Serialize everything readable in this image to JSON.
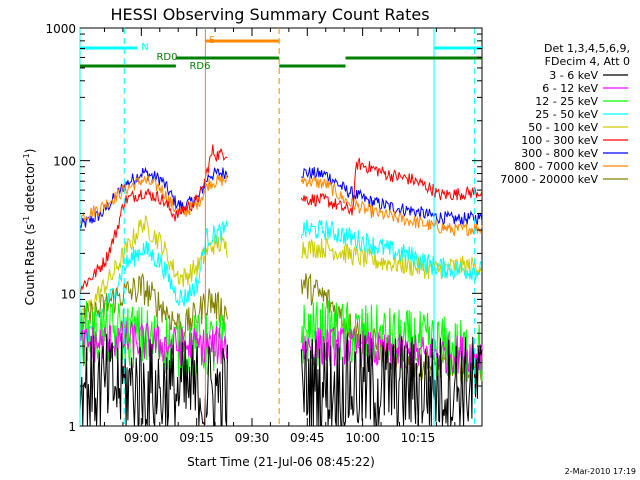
{
  "chart_data": {
    "type": "line",
    "title": "HESSI Observing Summary Count Rates",
    "xlabel": "Start Time (21-Jul-06 08:45:22)",
    "ylabel_parts": [
      "Count Rate (s",
      "-1",
      " detector",
      "-1",
      ")"
    ],
    "yscale": "log",
    "ylim": [
      1,
      1000
    ],
    "y_ticks": [
      {
        "value": 1,
        "label": "1"
      },
      {
        "value": 10,
        "label": "10"
      },
      {
        "value": 100,
        "label": "100"
      },
      {
        "value": 1000,
        "label": "1000"
      }
    ],
    "xlim_minutes": [
      -12,
      97
    ],
    "x_ticks": [
      {
        "t": 4.63,
        "label": "09:00"
      },
      {
        "t": 19.63,
        "label": "09:15"
      },
      {
        "t": 34.63,
        "label": "09:30"
      },
      {
        "t": 49.63,
        "label": "09:45"
      },
      {
        "t": 64.63,
        "label": "10:00"
      },
      {
        "t": 79.63,
        "label": "10:15"
      }
    ],
    "legend": {
      "header": [
        "Det 1,3,4,5,6,9,",
        "FDecim 4, Att 0"
      ],
      "entries": [
        {
          "label": "3 - 6 keV",
          "color": "#000000"
        },
        {
          "label": "6 - 12 keV",
          "color": "#ff00ff"
        },
        {
          "label": "12 - 25 keV",
          "color": "#00ff00"
        },
        {
          "label": "25 - 50 keV",
          "color": "#00ffff"
        },
        {
          "label": "50 - 100 keV",
          "color": "#cccc00"
        },
        {
          "label": "100 - 300 keV",
          "color": "#ff0000"
        },
        {
          "label": "300 - 800 keV",
          "color": "#0000ff"
        },
        {
          "label": "800 - 7000 keV",
          "color": "#ff8800"
        },
        {
          "label": "7000 - 20000 keV",
          "color": "#808000"
        }
      ]
    },
    "flag_labels": {
      "night": "N",
      "saa": "S",
      "rd0": "RD0",
      "rd6": "RD6"
    },
    "flags": {
      "night": {
        "color": "#00ffff",
        "bars": [
          [
            -12,
            3.5
          ],
          [
            84,
            97
          ]
        ],
        "edges": [
          -12,
          0,
          84,
          95
        ]
      },
      "saa": {
        "color": "#ff8800",
        "bars": [
          [
            22,
            42
          ]
        ],
        "edges": [
          22,
          42
        ]
      },
      "rd6": {
        "color": "#008000",
        "bars": [
          [
            -12,
            14
          ],
          [
            14,
            42
          ],
          [
            42,
            60
          ],
          [
            60,
            97
          ]
        ]
      }
    },
    "segments": [
      [
        -12,
        28
      ],
      [
        48,
        97
      ]
    ],
    "series": [
      {
        "name": "300 - 800 keV",
        "color": "#0000ff",
        "noise": 0.05,
        "points": [
          [
            -12,
            32
          ],
          [
            -6,
            40
          ],
          [
            0,
            65
          ],
          [
            5,
            82
          ],
          [
            10,
            72
          ],
          [
            14,
            48
          ],
          [
            16,
            45
          ],
          [
            20,
            52
          ],
          [
            23,
            78
          ],
          [
            25,
            80
          ],
          [
            28,
            82
          ],
          [
            48,
            82
          ],
          [
            55,
            78
          ],
          [
            60,
            60
          ],
          [
            66,
            50
          ],
          [
            72,
            45
          ],
          [
            78,
            42
          ],
          [
            84,
            38
          ],
          [
            90,
            36
          ],
          [
            95,
            37
          ]
        ]
      },
      {
        "name": "800 - 7000 keV",
        "color": "#ff8800",
        "noise": 0.05,
        "points": [
          [
            -12,
            37
          ],
          [
            -6,
            45
          ],
          [
            0,
            60
          ],
          [
            5,
            72
          ],
          [
            10,
            62
          ],
          [
            14,
            42
          ],
          [
            16,
            40
          ],
          [
            20,
            48
          ],
          [
            23,
            68
          ],
          [
            25,
            70
          ],
          [
            28,
            72
          ],
          [
            48,
            72
          ],
          [
            55,
            66
          ],
          [
            60,
            50
          ],
          [
            66,
            42
          ],
          [
            72,
            38
          ],
          [
            78,
            35
          ],
          [
            84,
            32
          ],
          [
            90,
            30
          ],
          [
            95,
            31
          ]
        ]
      },
      {
        "name": "100 - 300 keV",
        "color": "#ff0000",
        "noise": 0.05,
        "points": [
          [
            -12,
            11
          ],
          [
            -8,
            14
          ],
          [
            -5,
            18
          ],
          [
            -2,
            30
          ],
          [
            0,
            50
          ],
          [
            5,
            58
          ],
          [
            10,
            52
          ],
          [
            14,
            38
          ],
          [
            16,
            43
          ],
          [
            19,
            48
          ],
          [
            21,
            58
          ],
          [
            23,
            95
          ],
          [
            24,
            120
          ],
          [
            25,
            110
          ],
          [
            28,
            115
          ],
          [
            48,
            52
          ],
          [
            55,
            50
          ],
          [
            60,
            43
          ],
          [
            62,
            43
          ],
          [
            63,
            95
          ],
          [
            66,
            90
          ],
          [
            72,
            78
          ],
          [
            78,
            72
          ],
          [
            84,
            60
          ],
          [
            85,
            55
          ],
          [
            90,
            56
          ],
          [
            95,
            58
          ]
        ]
      },
      {
        "name": "50 - 100 keV",
        "color": "#cccc00",
        "noise": 0.08,
        "points": [
          [
            -12,
            6
          ],
          [
            -8,
            9
          ],
          [
            -3,
            14
          ],
          [
            0,
            20
          ],
          [
            5,
            34
          ],
          [
            10,
            24
          ],
          [
            14,
            14
          ],
          [
            16,
            13
          ],
          [
            20,
            16
          ],
          [
            23,
            22
          ],
          [
            25,
            24
          ],
          [
            28,
            22
          ],
          [
            48,
            22
          ],
          [
            55,
            22
          ],
          [
            60,
            20
          ],
          [
            66,
            18
          ],
          [
            72,
            17
          ],
          [
            78,
            16
          ],
          [
            84,
            15
          ],
          [
            90,
            16
          ],
          [
            95,
            16
          ]
        ]
      },
      {
        "name": "25 - 50 keV",
        "color": "#00ffff",
        "noise": 0.08,
        "points": [
          [
            -12,
            4
          ],
          [
            -8,
            6
          ],
          [
            -3,
            10
          ],
          [
            0,
            16
          ],
          [
            5,
            22
          ],
          [
            10,
            17
          ],
          [
            14,
            10
          ],
          [
            16,
            9
          ],
          [
            20,
            12
          ],
          [
            22,
            26
          ],
          [
            25,
            28
          ],
          [
            28,
            30
          ],
          [
            48,
            30
          ],
          [
            55,
            30
          ],
          [
            60,
            27
          ],
          [
            66,
            24
          ],
          [
            72,
            21
          ],
          [
            78,
            19
          ],
          [
            84,
            16
          ],
          [
            90,
            15
          ],
          [
            95,
            15
          ]
        ]
      },
      {
        "name": "7000 - 20000 keV",
        "color": "#808000",
        "noise": 0.12,
        "points": [
          [
            -12,
            6
          ],
          [
            -8,
            7
          ],
          [
            -3,
            9
          ],
          [
            0,
            10
          ],
          [
            5,
            11
          ],
          [
            10,
            8
          ],
          [
            14,
            6
          ],
          [
            16,
            5.5
          ],
          [
            20,
            7
          ],
          [
            23,
            9
          ],
          [
            25,
            8
          ],
          [
            28,
            7
          ],
          [
            48,
            12
          ],
          [
            55,
            9
          ],
          [
            60,
            6
          ],
          [
            66,
            4.5
          ],
          [
            72,
            3.5
          ],
          [
            78,
            3
          ],
          [
            84,
            2.8
          ],
          [
            90,
            2.8
          ],
          [
            95,
            2.8
          ]
        ]
      },
      {
        "name": "12 - 25 keV",
        "color": "#00ff00",
        "noise": 0.25,
        "points": [
          [
            -12,
            5
          ],
          [
            0,
            5
          ],
          [
            14,
            4
          ],
          [
            28,
            4
          ],
          [
            48,
            5
          ],
          [
            60,
            5
          ],
          [
            72,
            4.5
          ],
          [
            84,
            4
          ],
          [
            95,
            3.5
          ]
        ]
      },
      {
        "name": "6 - 12 keV",
        "color": "#ff00ff",
        "noise": 0.15,
        "points": [
          [
            -12,
            4
          ],
          [
            0,
            4.5
          ],
          [
            14,
            4
          ],
          [
            28,
            4
          ],
          [
            48,
            4
          ],
          [
            60,
            4
          ],
          [
            72,
            3.5
          ],
          [
            84,
            3.5
          ],
          [
            95,
            3.5
          ]
        ]
      },
      {
        "name": "3 - 6 keV",
        "color": "#000000",
        "noise": 0.4,
        "points": [
          [
            -12,
            2
          ],
          [
            0,
            2
          ],
          [
            14,
            1.8
          ],
          [
            28,
            1.8
          ],
          [
            48,
            2
          ],
          [
            60,
            2
          ],
          [
            72,
            2
          ],
          [
            84,
            2
          ],
          [
            95,
            2
          ]
        ]
      }
    ]
  },
  "footer": {
    "date": "2-Mar-2010 17:19"
  }
}
